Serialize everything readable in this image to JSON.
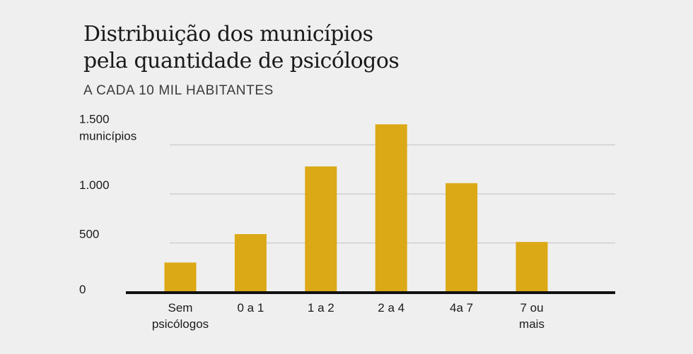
{
  "chart_data": {
    "type": "bar",
    "title_lines": [
      "Distribuição dos municípios",
      "pela quantidade de psicólogos"
    ],
    "subtitle": "A CADA 10 MIL HABITANTES",
    "categories": [
      [
        "Sem",
        "psicólogos"
      ],
      [
        "0 a 1"
      ],
      [
        "1 a 2"
      ],
      [
        "2 a 4"
      ],
      [
        "4a 7"
      ],
      [
        "7 ou",
        "mais"
      ]
    ],
    "values": [
      300,
      590,
      1280,
      1710,
      1110,
      510
    ],
    "ylim": [
      0,
      1750
    ],
    "yticks": [
      {
        "value": 0,
        "lines": [
          "0"
        ]
      },
      {
        "value": 500,
        "lines": [
          "500"
        ]
      },
      {
        "value": 1000,
        "lines": [
          "1.000"
        ]
      },
      {
        "value": 1500,
        "lines": [
          "1.500",
          "municípios"
        ]
      }
    ],
    "grid": true,
    "bar_color": "#dba915"
  }
}
